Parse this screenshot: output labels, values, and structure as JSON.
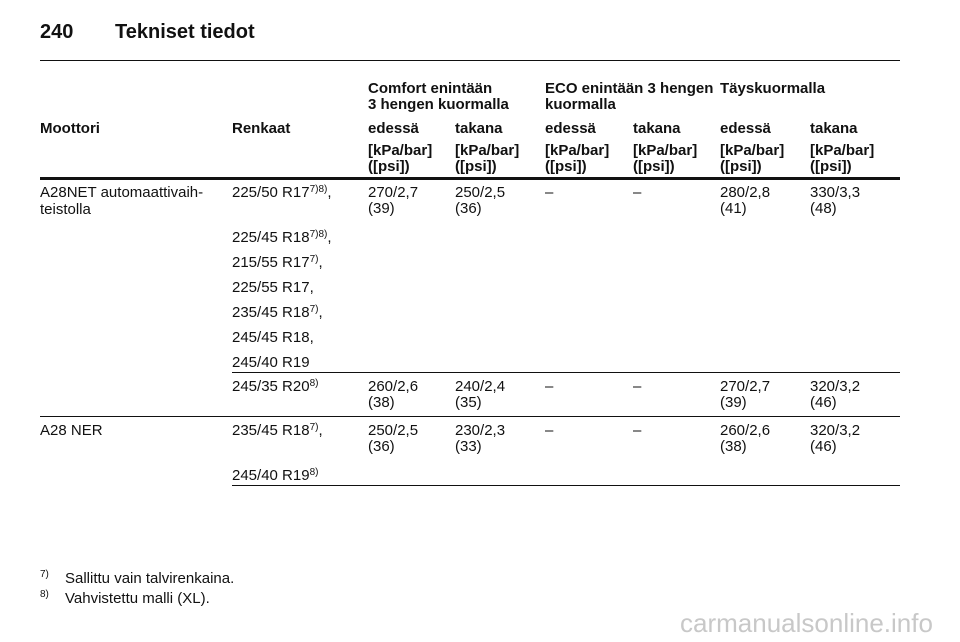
{
  "header": {
    "page": "240",
    "title": "Tekniset tiedot"
  },
  "table": {
    "group_headers": [
      [
        "Comfort enintään",
        "3 hengen kuormalla"
      ],
      [
        "ECO enintään 3 hengen",
        "kuormalla"
      ],
      [
        "Täyskuormalla"
      ]
    ],
    "columns": [
      "Moottori",
      "Renkaat",
      "edessä",
      "takana",
      "edessä",
      "takana",
      "edessä",
      "takana"
    ],
    "units": [
      [
        "[kPa/bar]",
        "([psi])"
      ],
      [
        "[kPa/bar]",
        "([psi])"
      ],
      [
        "[kPa/bar]",
        "([psi])"
      ],
      [
        "[kPa/bar]",
        "([psi])"
      ],
      [
        "[kPa/bar]",
        "([psi])"
      ],
      [
        "[kPa/bar]",
        "([psi])"
      ]
    ],
    "rows": [
      {
        "engine": [
          "A28NET automaattivaih-",
          "teistolla"
        ],
        "groups": [
          {
            "tires": [
              {
                "text": "225/50 R17",
                "sup": "7)8)",
                "suffix": ","
              },
              {
                "text": "225/45 R18",
                "sup": "7)8)",
                "suffix": ","
              },
              {
                "text": "215/55 R17",
                "sup": "7)",
                "suffix": ","
              },
              {
                "text": "225/55 R17,"
              },
              {
                "text": "235/45 R18",
                "sup": "7)",
                "suffix": ","
              },
              {
                "text": "245/45 R18,"
              },
              {
                "text": "245/40 R19"
              }
            ],
            "values": [
              [
                "270/2,7",
                "(39)"
              ],
              [
                "250/2,5",
                "(36)"
              ],
              [
                "–"
              ],
              [
                "–"
              ],
              [
                "280/2,8",
                "(41)"
              ],
              [
                "330/3,3",
                "(48)"
              ]
            ]
          },
          {
            "tires": [
              {
                "text": "245/35 R20",
                "sup": "8)"
              }
            ],
            "values": [
              [
                "260/2,6",
                "(38)"
              ],
              [
                "240/2,4",
                "(35)"
              ],
              [
                "–"
              ],
              [
                "–"
              ],
              [
                "270/2,7",
                "(39)"
              ],
              [
                "320/3,2",
                "(46)"
              ]
            ]
          }
        ]
      },
      {
        "engine": [
          "A28 NER"
        ],
        "groups": [
          {
            "tires": [
              {
                "text": "235/45 R18",
                "sup": "7)",
                "suffix": ","
              },
              {
                "text": "245/40 R19",
                "sup": "8)"
              }
            ],
            "values": [
              [
                "250/2,5",
                "(36)"
              ],
              [
                "230/2,3",
                "(33)"
              ],
              [
                "–"
              ],
              [
                "–"
              ],
              [
                "260/2,6",
                "(38)"
              ],
              [
                "320/3,2",
                "(46)"
              ]
            ]
          }
        ]
      }
    ]
  },
  "footnotes": [
    {
      "mark": "7)",
      "text": "Sallittu vain talvirenkaina."
    },
    {
      "mark": "8)",
      "text": "Vahvistettu malli (XL)."
    }
  ],
  "watermark": "carmanualsonline.info"
}
